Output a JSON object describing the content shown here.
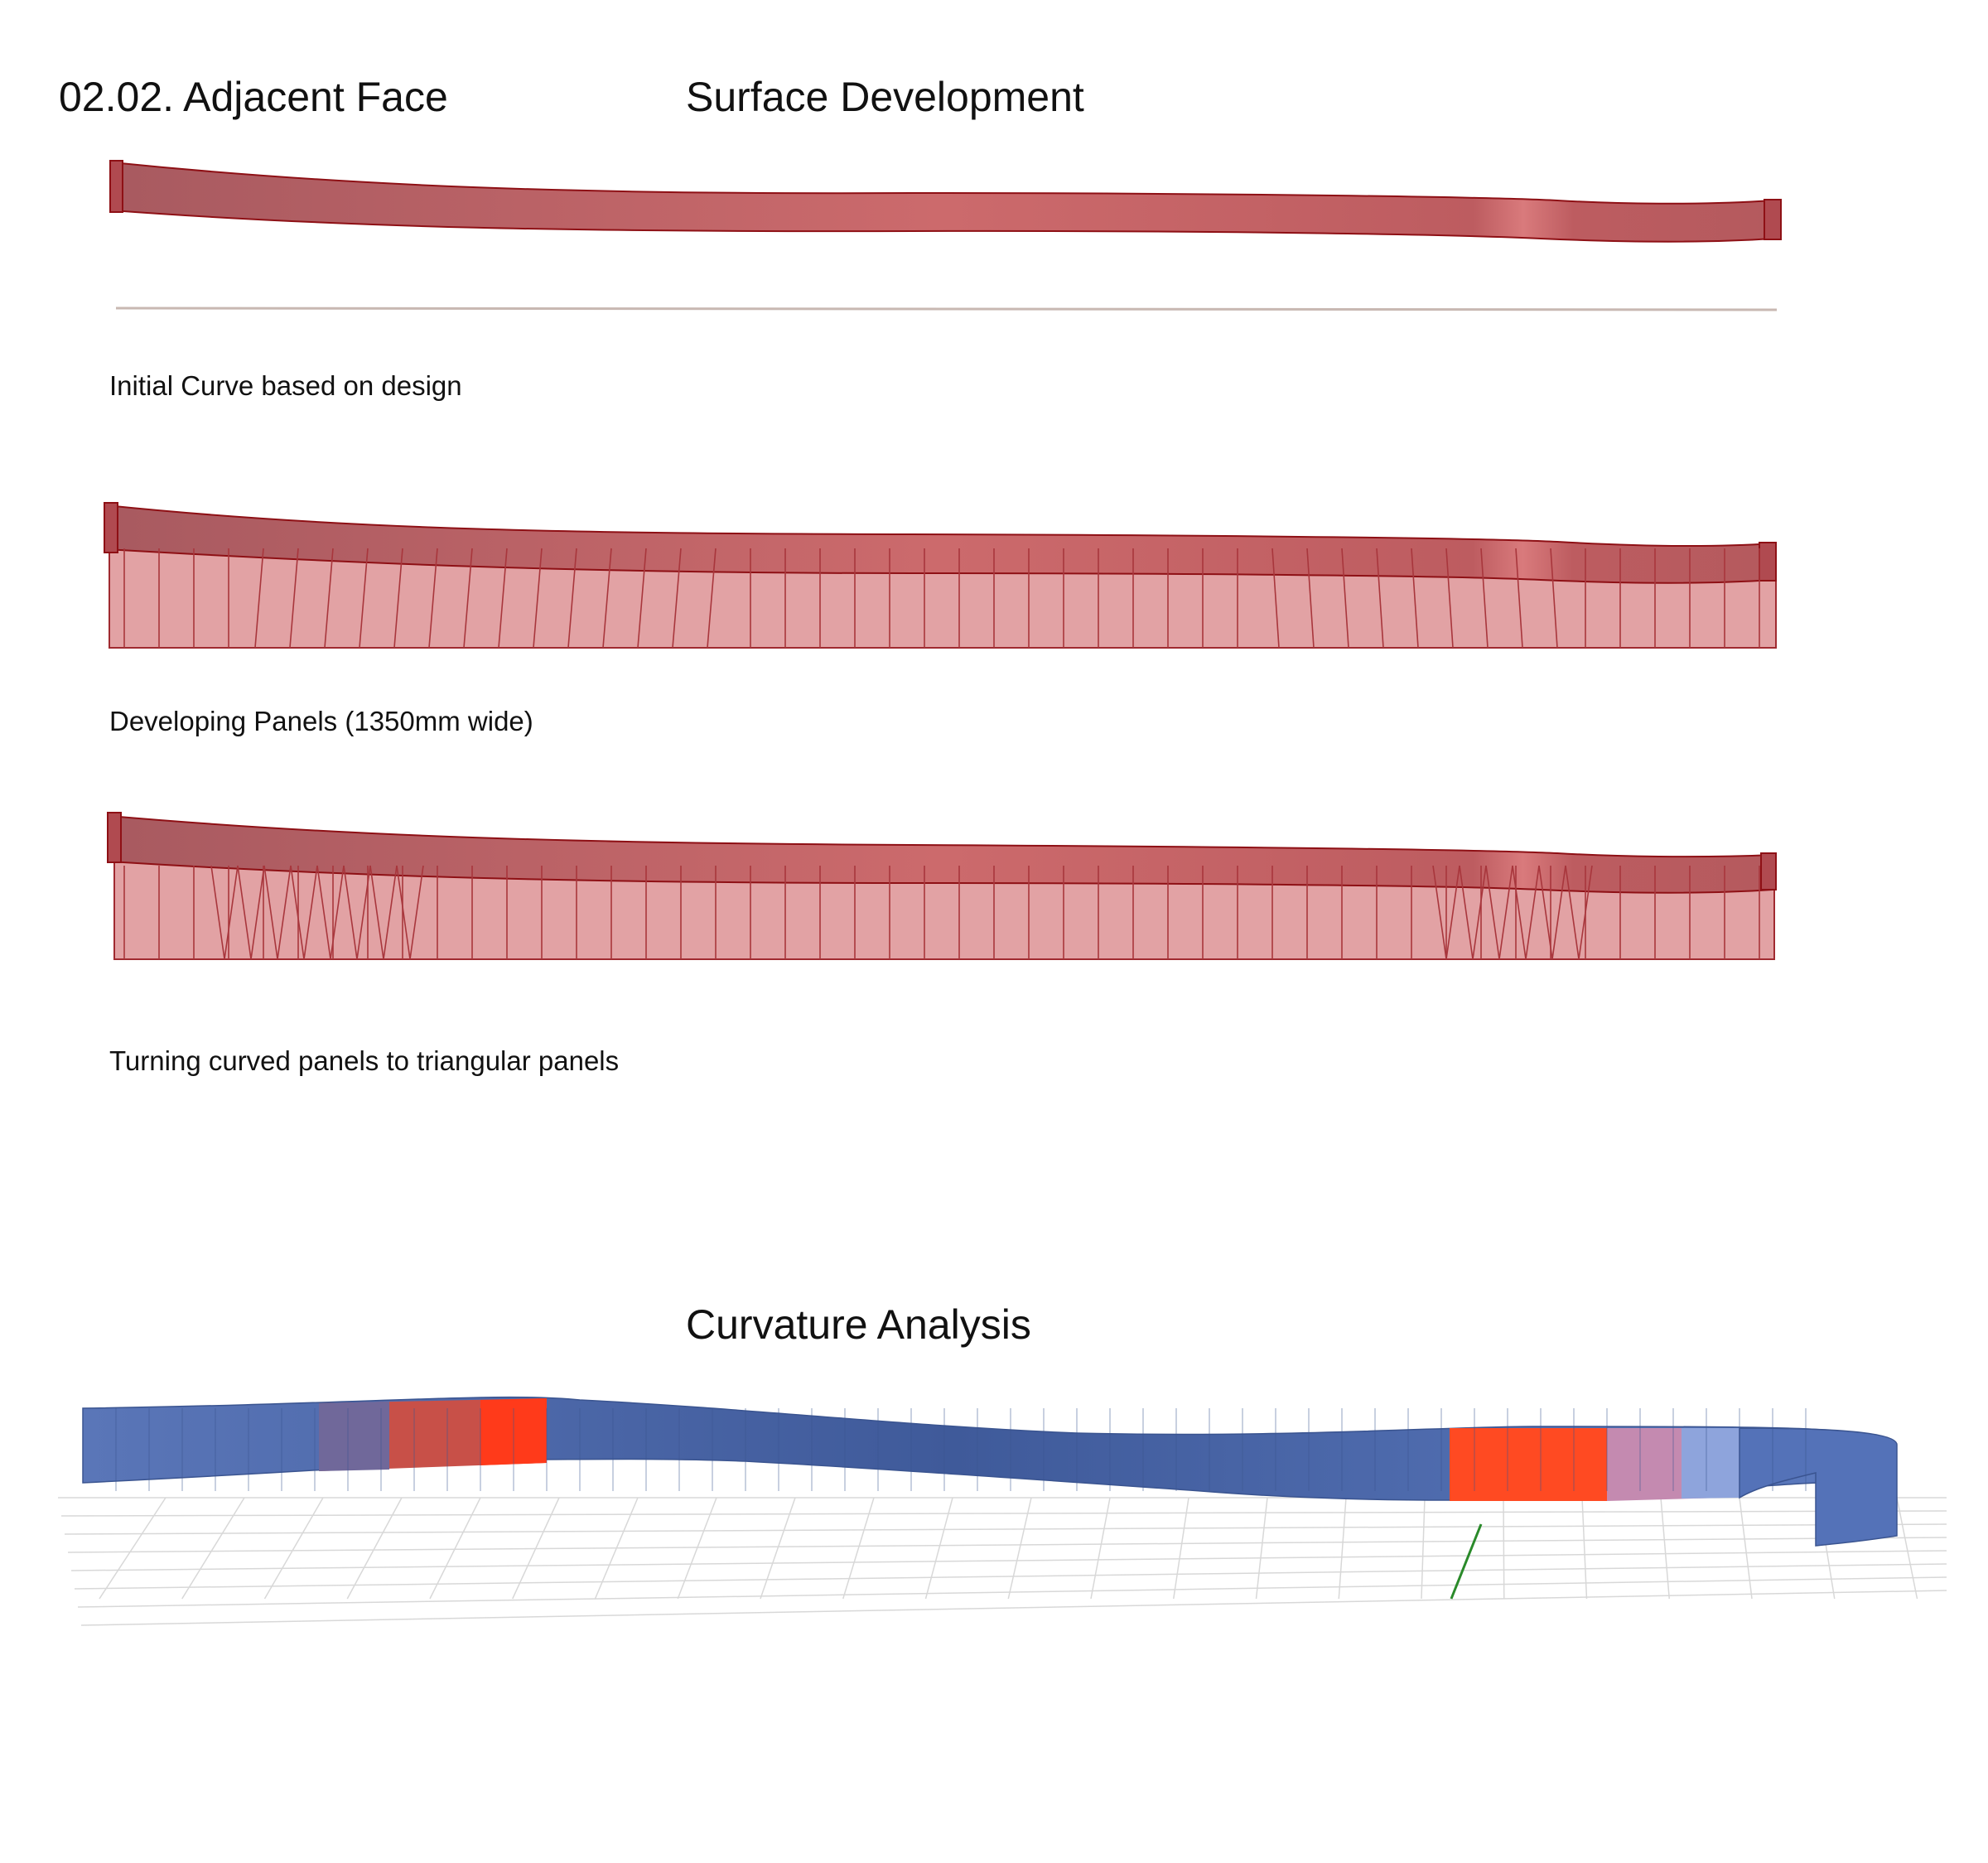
{
  "header": {
    "section_label": "02.02. Adjacent Face",
    "surface_title": "Surface Development",
    "curvature_title": "Curvature Analysis"
  },
  "steps": [
    {
      "caption": "Initial Curve based on design"
    },
    {
      "caption": "Developing Panels (1350mm wide)"
    },
    {
      "caption": "Turning curved panels to triangular panels"
    }
  ],
  "colors": {
    "surface_red": "#c45a5f",
    "surface_edge": "#8e1015",
    "panel_pink": "#e0a0a2",
    "curve_line": "#c8b8b2",
    "analysis_blue": "#5470b0",
    "analysis_red": "#ff3a1a",
    "grid": "#d8d8d8",
    "axis_green": "#2a8a2a"
  }
}
